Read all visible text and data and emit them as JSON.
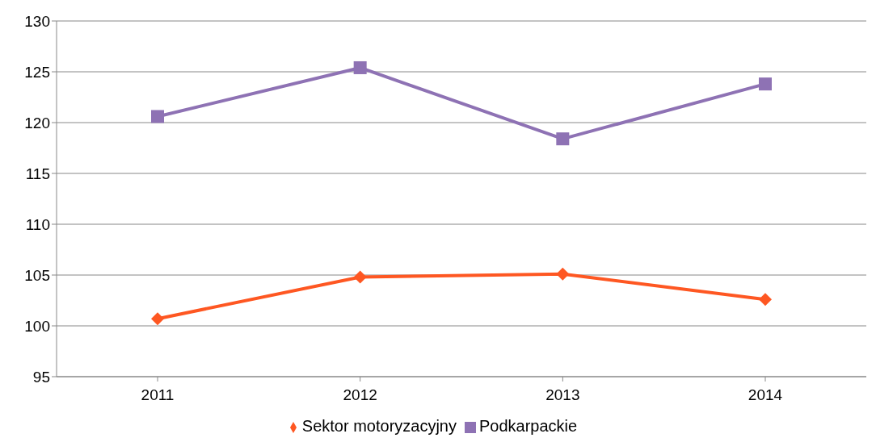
{
  "chart_data": {
    "type": "line",
    "categories": [
      "2011",
      "2012",
      "2013",
      "2014"
    ],
    "series": [
      {
        "name": "Sektor motoryzacyjny",
        "color": "#fe5722",
        "marker": "diamond",
        "values": [
          100.7,
          104.8,
          105.1,
          102.6
        ]
      },
      {
        "name": "Podkarpackie",
        "color": "#8e72b4",
        "marker": "square",
        "values": [
          120.6,
          125.4,
          118.4,
          123.8
        ]
      }
    ],
    "ylim": [
      95,
      130
    ],
    "yticks": [
      95,
      100,
      105,
      110,
      115,
      120,
      125,
      130
    ],
    "grid": "y",
    "legend": "bottom",
    "line_style": "solid"
  }
}
